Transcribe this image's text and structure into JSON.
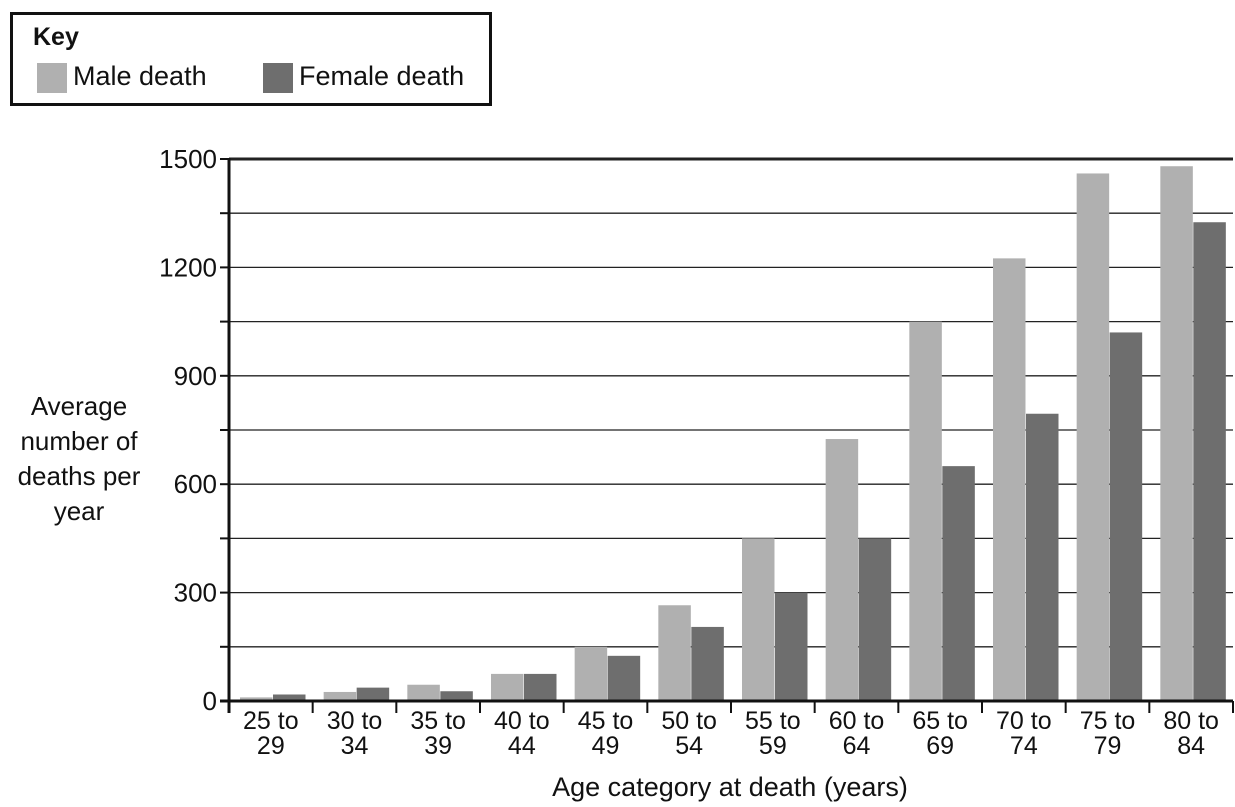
{
  "legend": {
    "title": "Key",
    "male_label": "Male death",
    "female_label": "Female death"
  },
  "chart_data": {
    "type": "bar",
    "ylabel_lines": [
      "Average",
      "number of",
      "deaths per",
      "year"
    ],
    "xlabel": "Age category at death (years)",
    "ylim": [
      0,
      1500
    ],
    "yticks": [
      0,
      300,
      600,
      900,
      1200,
      1500
    ],
    "grid": true,
    "legend_position": "top-left",
    "categories": [
      [
        "25 to",
        "29"
      ],
      [
        "30 to",
        "34"
      ],
      [
        "35 to",
        "39"
      ],
      [
        "40 to",
        "44"
      ],
      [
        "45 to",
        "49"
      ],
      [
        "50 to",
        "54"
      ],
      [
        "55 to",
        "59"
      ],
      [
        "60 to",
        "64"
      ],
      [
        "65 to",
        "69"
      ],
      [
        "70 to",
        "74"
      ],
      [
        "75 to",
        "79"
      ],
      [
        "80 to",
        "84"
      ]
    ],
    "series": [
      {
        "name": "Male death",
        "color": "#b0b0b0",
        "values": [
          10,
          25,
          45,
          75,
          150,
          265,
          450,
          725,
          1050,
          1225,
          1460,
          1480
        ]
      },
      {
        "name": "Female death",
        "color": "#6e6e6e",
        "values": [
          18,
          37,
          27,
          75,
          125,
          205,
          300,
          450,
          650,
          795,
          1020,
          1325
        ]
      }
    ]
  }
}
